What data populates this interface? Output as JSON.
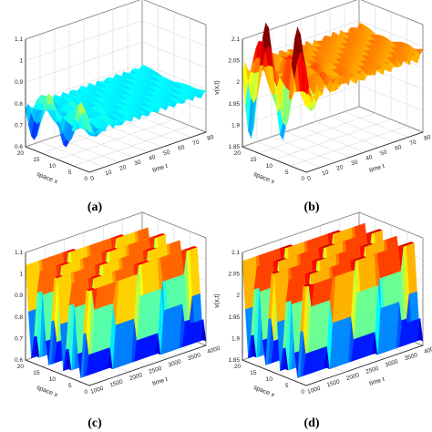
{
  "chart_data": [
    {
      "type": "surface",
      "panel_label": "(a)",
      "xlabel": "time t",
      "ylabel": "space x",
      "zlabel": "",
      "t_ticks": [
        "0",
        "10",
        "20",
        "30",
        "40",
        "50",
        "60",
        "70",
        "80"
      ],
      "x_ticks": [
        "0",
        "5",
        "10",
        "15",
        "20"
      ],
      "z_ticks": [
        "0.6",
        "0.7",
        "0.8",
        "0.9",
        "1",
        "1.1"
      ],
      "tlim": [
        0,
        80
      ],
      "xlim": [
        0,
        20
      ],
      "zlim": [
        0.6,
        1.1
      ],
      "z_base": 0.78,
      "z_amp": 0.015,
      "t_period": 6,
      "x_modes": 2,
      "transient_dip": 0.12,
      "colormap": "jet"
    },
    {
      "type": "surface",
      "panel_label": "(b)",
      "xlabel": "time t",
      "ylabel": "space x",
      "zlabel": "v(x,t)",
      "t_ticks": [
        "0",
        "10",
        "20",
        "30",
        "40",
        "50",
        "60",
        "70",
        "80"
      ],
      "x_ticks": [
        "0",
        "5",
        "10",
        "15",
        "20"
      ],
      "z_ticks": [
        "1.85",
        "1.9",
        "1.95",
        "2",
        "2.05",
        "2.1"
      ],
      "tlim": [
        0,
        80
      ],
      "xlim": [
        0,
        20
      ],
      "zlim": [
        1.85,
        2.1
      ],
      "z_base": 2.03,
      "z_amp": 0.015,
      "t_period": 6,
      "x_modes": 2,
      "transient_dip": 0.14,
      "colormap": "jet"
    },
    {
      "type": "surface",
      "panel_label": "(c)",
      "xlabel": "time t",
      "ylabel": "space x",
      "zlabel": "",
      "t_ticks": [
        "1000",
        "1500",
        "2000",
        "2500",
        "3000",
        "3500",
        "4000"
      ],
      "x_ticks": [
        "0",
        "5",
        "10",
        "15",
        "20"
      ],
      "z_ticks": [
        "0.6",
        "0.7",
        "0.8",
        "0.9",
        "1",
        "1.1"
      ],
      "tlim": [
        1000,
        4000
      ],
      "xlim": [
        0,
        20
      ],
      "zlim": [
        0.6,
        1.1
      ],
      "z_low": 0.62,
      "z_high": 1.04,
      "plateaus": 4,
      "colormap": "jet"
    },
    {
      "type": "surface",
      "panel_label": "(d)",
      "xlabel": "time t",
      "ylabel": "space x",
      "zlabel": "v(x,t)",
      "t_ticks": [
        "1000",
        "1500",
        "2000",
        "2500",
        "3000",
        "3500",
        "4000"
      ],
      "x_ticks": [
        "0",
        "5",
        "10",
        "15",
        "20"
      ],
      "z_ticks": [
        "1.85",
        "1.9",
        "1.95",
        "2",
        "2.05",
        "2.1"
      ],
      "tlim": [
        1000,
        4000
      ],
      "xlim": [
        0,
        20
      ],
      "zlim": [
        1.85,
        2.1
      ],
      "z_low": 1.86,
      "z_high": 2.08,
      "plateaus": 4,
      "colormap": "jet"
    }
  ]
}
